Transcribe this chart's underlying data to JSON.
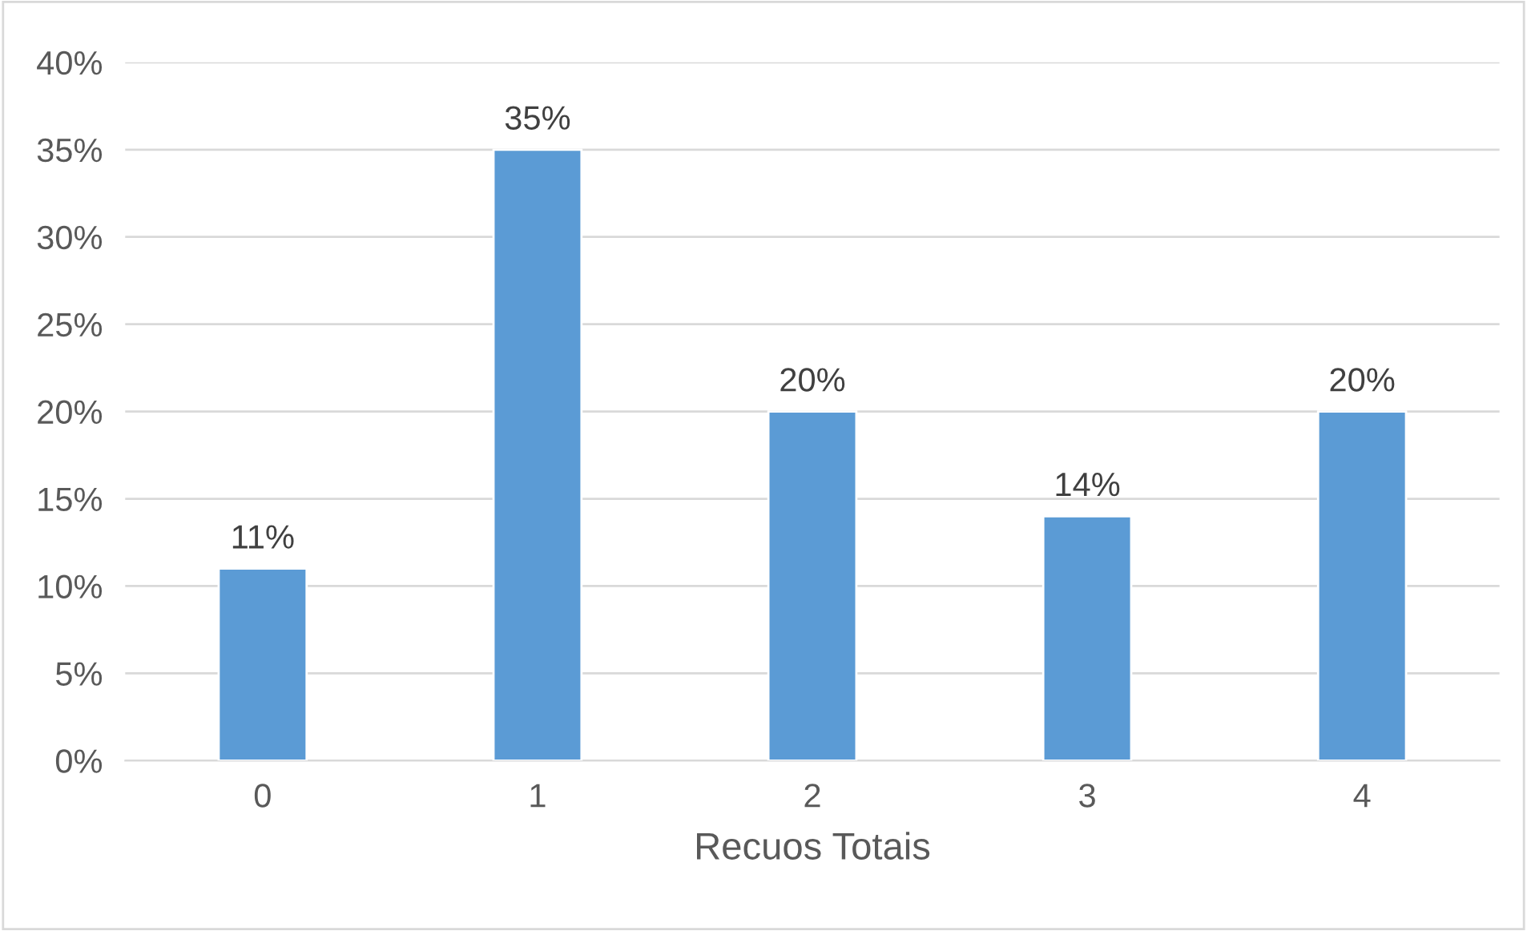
{
  "chart_data": {
    "type": "bar",
    "xlabel": "Recuos Totais",
    "categories": [
      "0",
      "1",
      "2",
      "3",
      "4"
    ],
    "values": [
      11,
      35,
      20,
      14,
      20
    ],
    "value_labels": [
      "11%",
      "35%",
      "20%",
      "14%",
      "20%"
    ],
    "color": "#5b9bd5",
    "ylim": [
      0,
      40
    ],
    "yticks": [
      {
        "value": 0,
        "label": "0%"
      },
      {
        "value": 5,
        "label": "5%"
      },
      {
        "value": 10,
        "label": "10%"
      },
      {
        "value": 15,
        "label": "15%"
      },
      {
        "value": 20,
        "label": "20%"
      },
      {
        "value": 25,
        "label": "25%"
      },
      {
        "value": 30,
        "label": "30%"
      },
      {
        "value": 35,
        "label": "35%"
      },
      {
        "value": 40,
        "label": "40%"
      }
    ],
    "grid": "y"
  }
}
